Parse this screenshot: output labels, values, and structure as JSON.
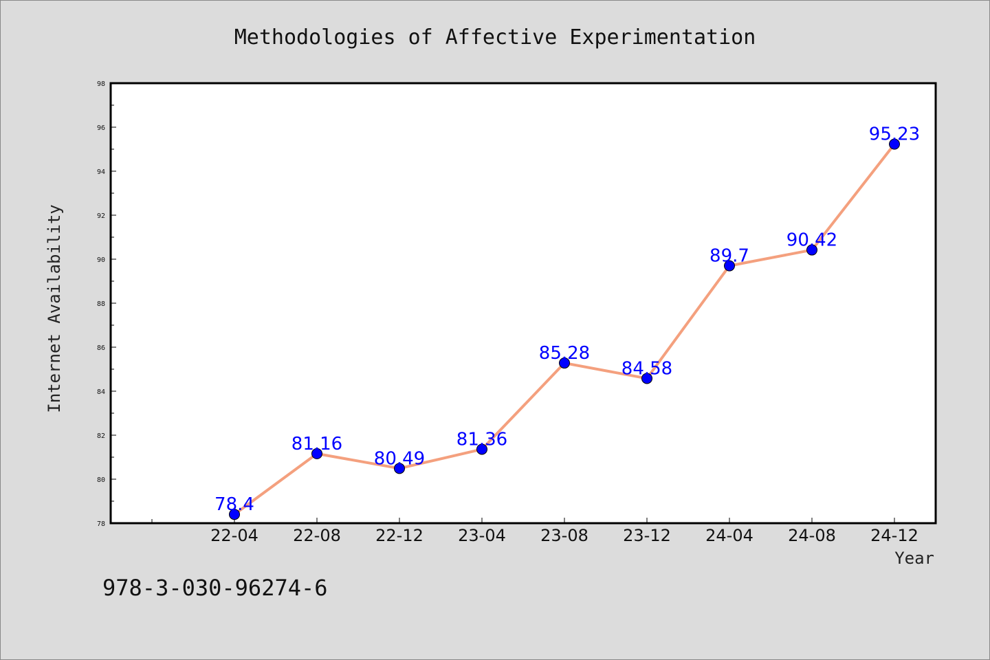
{
  "chart_data": {
    "type": "line",
    "title": "Methodologies of Affective Experimentation",
    "xlabel": "Year",
    "ylabel": "Internet Availability",
    "categories": [
      "22-04",
      "22-08",
      "22-12",
      "23-04",
      "23-08",
      "23-12",
      "24-04",
      "24-08",
      "24-12"
    ],
    "series": [
      {
        "values": [
          78.4,
          81.16,
          80.49,
          81.36,
          85.28,
          84.58,
          89.7,
          90.42,
          95.23
        ],
        "data_labels": [
          "78.4",
          "81.16",
          "80.49",
          "81.36",
          "85.28",
          "84.58",
          "89.7",
          "90.42",
          "95.23"
        ],
        "line_color": "#f4a07e",
        "marker_color": "#0000ff"
      }
    ],
    "ylim": [
      78,
      98
    ],
    "yticks": [
      "78",
      "80",
      "82",
      "84",
      "86",
      "88",
      "90",
      "92",
      "94",
      "96",
      "98"
    ],
    "grid": false,
    "legend": "none",
    "background_color": "#dcdcdc",
    "plot_background_color": "#ffffff",
    "data_label_color": "#0000ff"
  },
  "footer": {
    "isbn": "978-3-030-96274-6"
  }
}
